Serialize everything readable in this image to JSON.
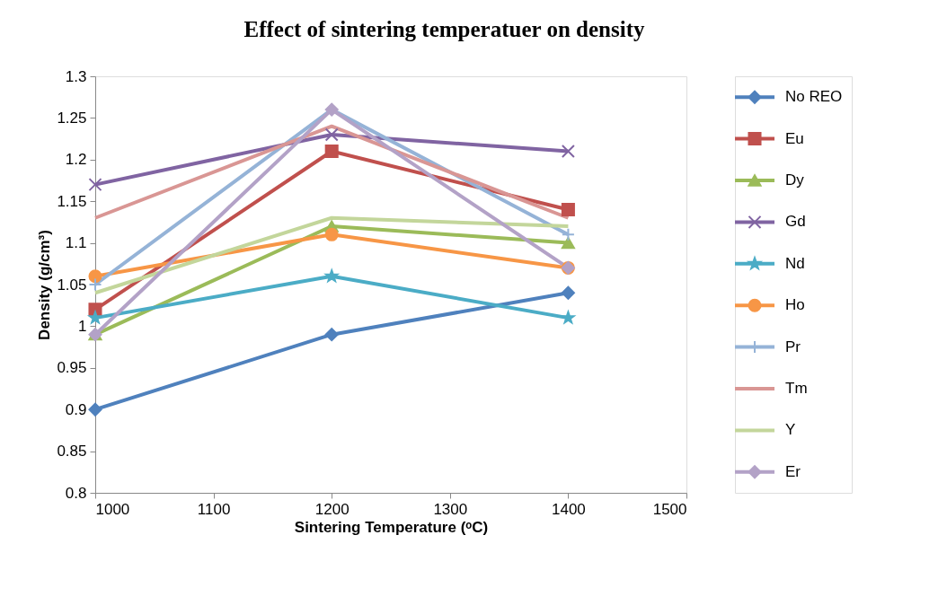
{
  "chart_data": {
    "type": "line",
    "title": "Effect of sintering temperatuer on density",
    "xlabel": "Sintering Temperature (ᵒC)",
    "ylabel": "Density (g/cm³)",
    "x": [
      1000,
      1200,
      1400
    ],
    "xlim": [
      1000,
      1500
    ],
    "xticks": [
      1000,
      1100,
      1200,
      1300,
      1400,
      1500
    ],
    "ylim": [
      0.8,
      1.3
    ],
    "yticks": [
      0.8,
      0.85,
      0.9,
      0.95,
      1,
      1.05,
      1.1,
      1.15,
      1.2,
      1.25,
      1.3
    ],
    "grid": false,
    "legend": "right",
    "series": [
      {
        "name": "No REO",
        "color": "#4f81bd",
        "marker": "diamond",
        "values": [
          0.9,
          0.99,
          1.04
        ]
      },
      {
        "name": "Eu",
        "color": "#c0504d",
        "marker": "square",
        "values": [
          1.02,
          1.21,
          1.14
        ]
      },
      {
        "name": "Dy",
        "color": "#9bbb59",
        "marker": "triangle",
        "values": [
          0.99,
          1.12,
          1.1
        ]
      },
      {
        "name": "Gd",
        "color": "#8064a2",
        "marker": "cross",
        "values": [
          1.17,
          1.23,
          1.21
        ]
      },
      {
        "name": "Nd",
        "color": "#4bacc6",
        "marker": "star",
        "values": [
          1.01,
          1.06,
          1.01
        ]
      },
      {
        "name": "Ho",
        "color": "#f79646",
        "marker": "circle",
        "values": [
          1.06,
          1.11,
          1.07
        ]
      },
      {
        "name": "Pr",
        "color": "#95b3d7",
        "marker": "plus",
        "values": [
          1.05,
          1.26,
          1.11
        ]
      },
      {
        "name": "Tm",
        "color": "#d99694",
        "marker": "none",
        "values": [
          1.13,
          1.24,
          1.13
        ]
      },
      {
        "name": "Y",
        "color": "#c3d69b",
        "marker": "none",
        "values": [
          1.04,
          1.13,
          1.12
        ]
      },
      {
        "name": "Er",
        "color": "#b3a2c7",
        "marker": "diamond",
        "values": [
          0.99,
          1.26,
          1.07
        ]
      }
    ]
  }
}
